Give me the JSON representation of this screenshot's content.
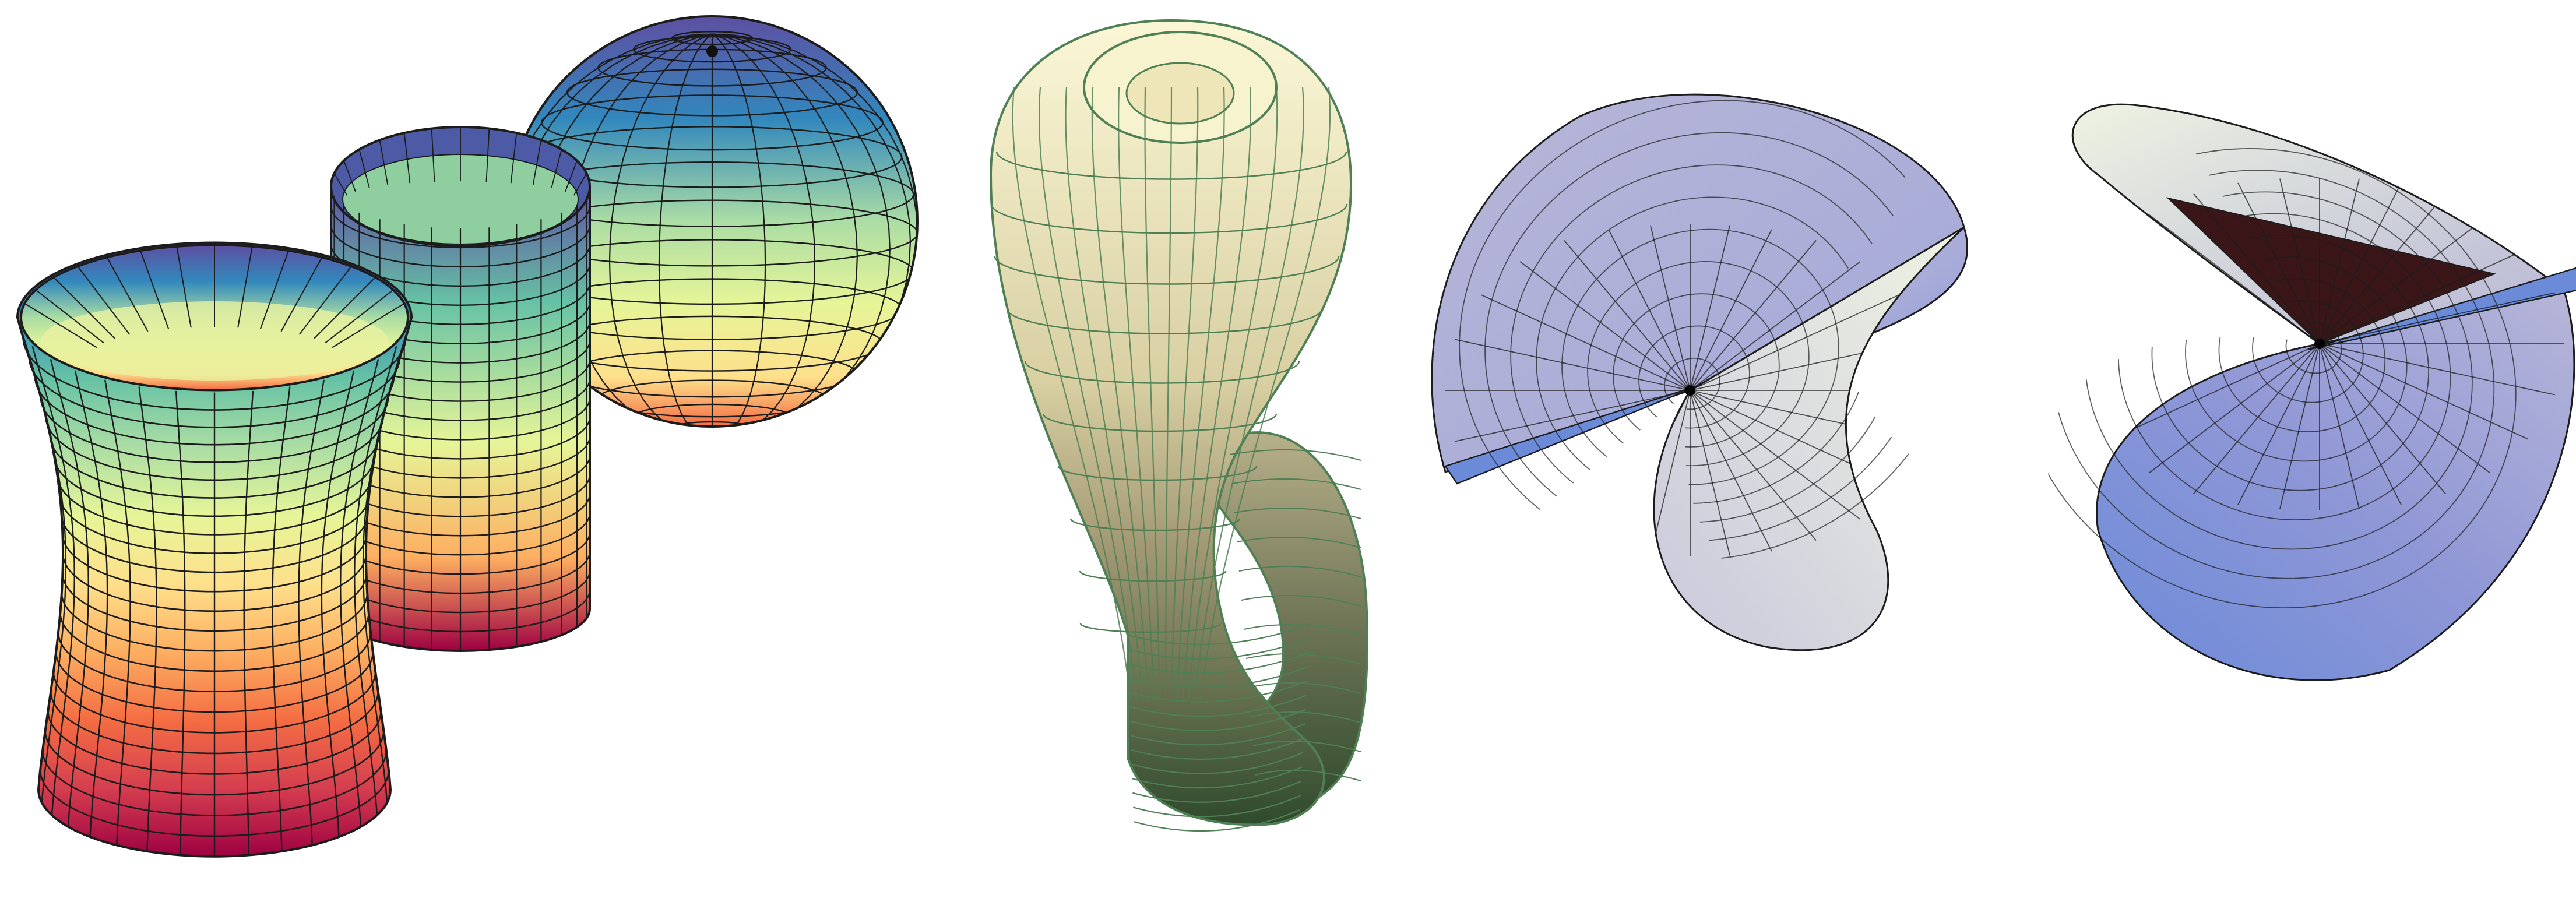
{
  "figures": [
    {
      "icon": "hyperboloid-icon",
      "palette": "spectral"
    },
    {
      "icon": "cylinder-icon",
      "palette": "spectral"
    },
    {
      "icon": "sphere-icon",
      "palette": "spectral"
    },
    {
      "icon": "klein-bottle-icon",
      "palette": "green-cream"
    },
    {
      "icon": "cross-cap-icon",
      "palette": "lavender-blue"
    },
    {
      "icon": "cross-cap-rotated-icon",
      "palette": "lavender-blue"
    }
  ],
  "colors": {
    "spectral": [
      "#5e4fa2",
      "#3288bd",
      "#66c2a5",
      "#abdda4",
      "#e6f598",
      "#fee08b",
      "#fdae61",
      "#f46d43",
      "#d53e4f",
      "#9e0142"
    ],
    "klein_fill_top": "#fbf7d6",
    "klein_fill_mid": "#d8cfa2",
    "klein_fill_bottom": "#2f4a2c",
    "klein_line": "#4f7f55",
    "cap_light": "#eef3e2",
    "cap_lavender": "#b7b6d8",
    "cap_blue": "#6b8bd9",
    "cap_dark": "#3a1618",
    "mesh_line": "#1c1c1c"
  }
}
